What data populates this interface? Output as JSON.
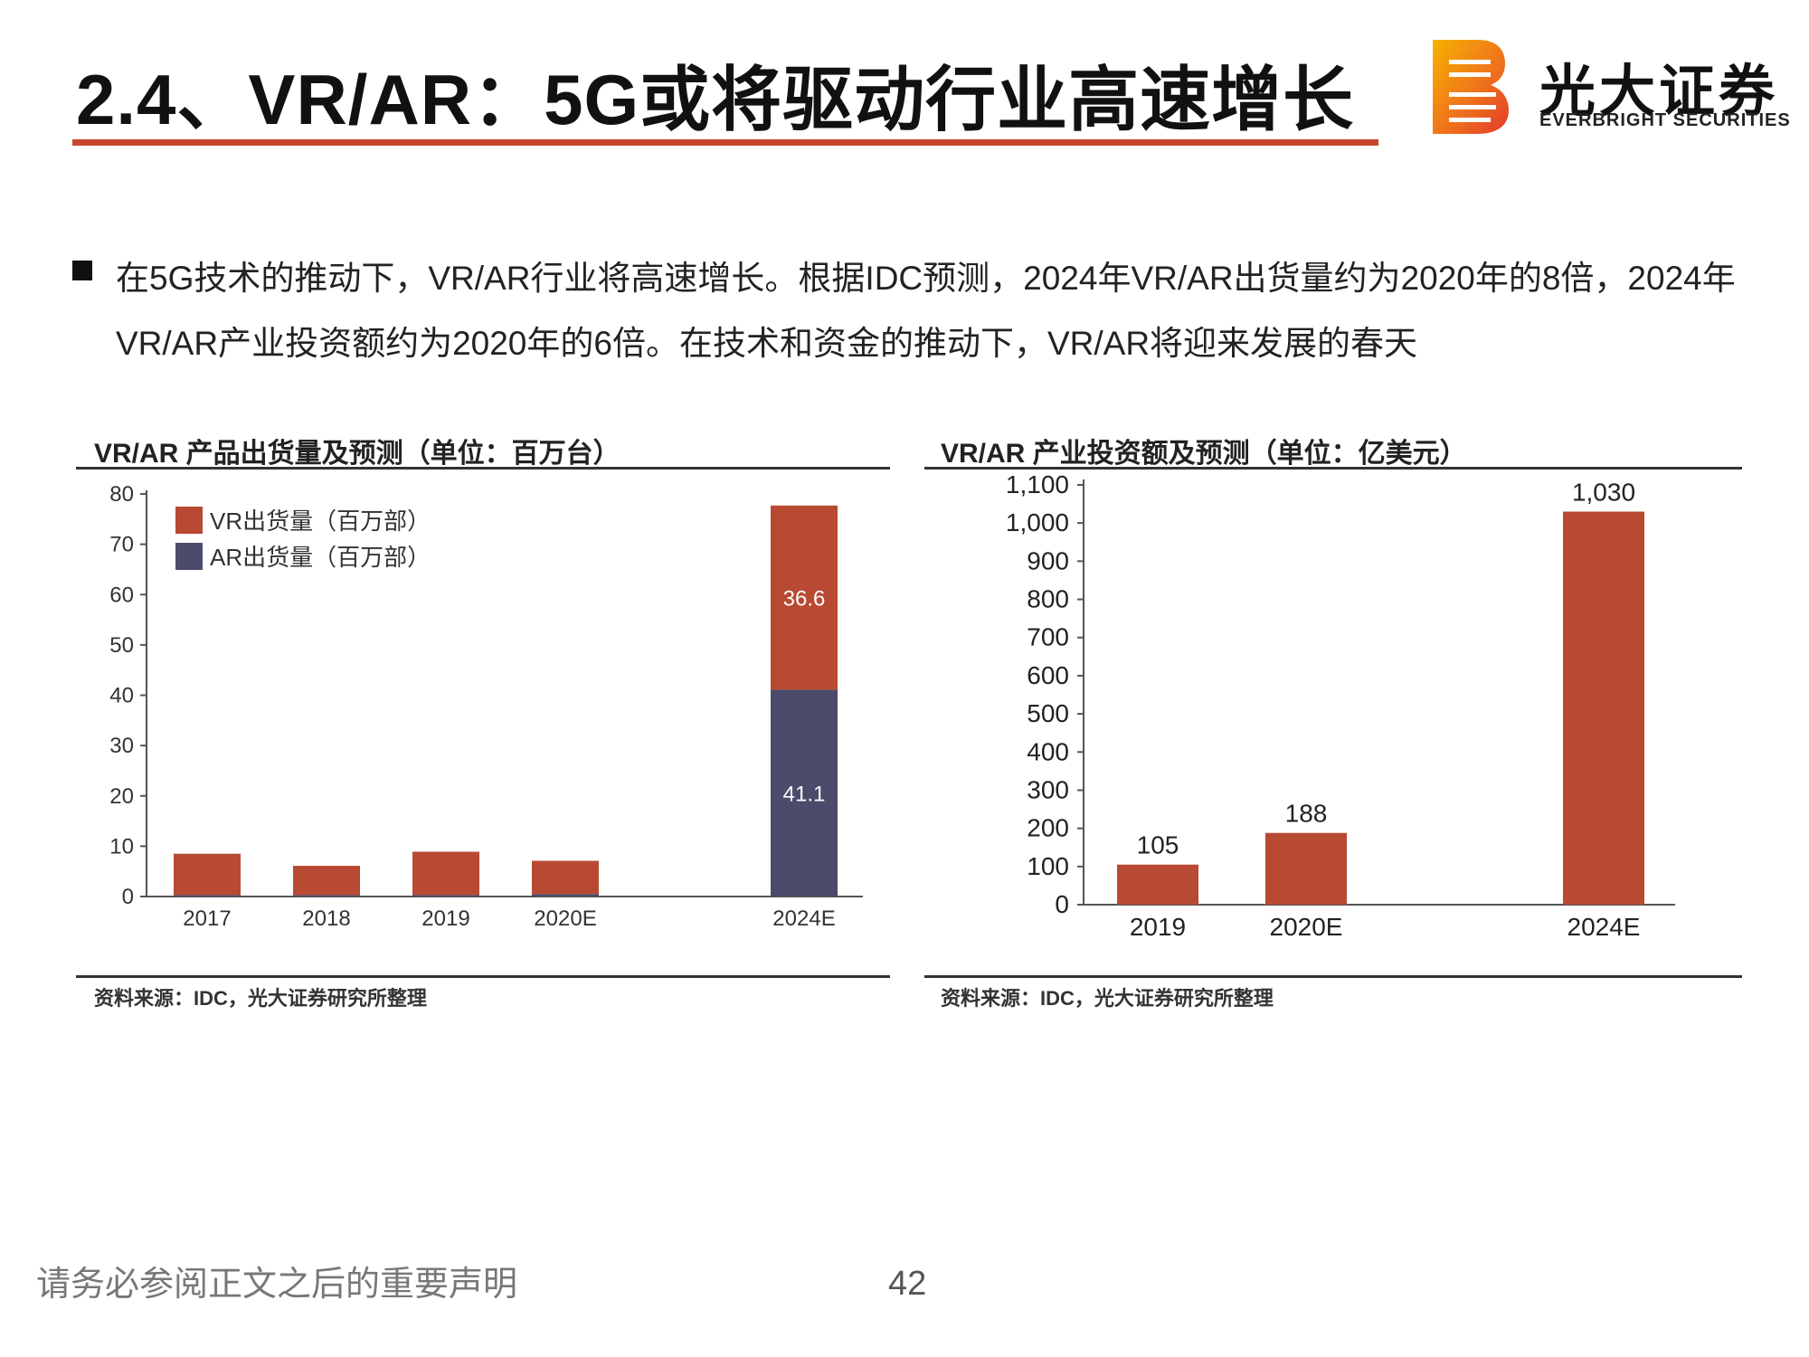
{
  "page": {
    "title": "2.4、VR/AR：5G或将驱动行业高速增长",
    "bullet": "在5G技术的推动下，VR/AR行业将高速增长。根据IDC预测，2024年VR/AR出货量约为2020年的8倍，2024年VR/AR产业投资额约为2020年的6倍。在技术和资金的推动下，VR/AR将迎来发展的春天",
    "footer_note": "请务必参阅正文之后的重要声明",
    "page_number": "42"
  },
  "logo": {
    "cn": "光大证券",
    "en": "EVERBRIGHT SECURITIES",
    "colors": [
      "#f6b100",
      "#f07a1a",
      "#e23a2a"
    ]
  },
  "colors": {
    "accent_rule": "#c8462c",
    "vr_bar": "#b84a34",
    "ar_bar": "#4d4b6b",
    "invest_bar": "#b84a34"
  },
  "panels": {
    "left": {
      "title": "VR/AR 产品出货量及预测（单位：百万台）",
      "source": "资料来源：IDC，光大证券研究所整理"
    },
    "right": {
      "title": "VR/AR 产业投资额及预测（单位：亿美元）",
      "source": "资料来源：IDC，光大证券研究所整理"
    }
  },
  "chart_data": [
    {
      "type": "bar",
      "stacked": true,
      "title": "VR/AR 产品出货量及预测（单位：百万台）",
      "categories": [
        "2017",
        "2018",
        "2019",
        "2020E",
        "2024E"
      ],
      "series": [
        {
          "name": "AR出货量（百万部）",
          "values": [
            0.3,
            0.3,
            0.3,
            0.5,
            41.1
          ],
          "color": "#4d4b6b"
        },
        {
          "name": "VR出货量（百万部）",
          "values": [
            8.2,
            5.8,
            8.6,
            6.6,
            36.6
          ],
          "color": "#b84a34"
        }
      ],
      "data_labels": {
        "2024E": [
          "41.1",
          "36.6"
        ]
      },
      "ylim": [
        0,
        80
      ],
      "yticks": [
        "0",
        "10",
        "20",
        "30",
        "40",
        "50",
        "60",
        "70",
        "80"
      ],
      "legend_position": "top-left",
      "grid": false
    },
    {
      "type": "bar",
      "title": "VR/AR 产业投资额及预测（单位：亿美元）",
      "categories": [
        "2019",
        "2020E",
        "2024E"
      ],
      "values": [
        105,
        188,
        1030
      ],
      "value_labels": [
        "105",
        "188",
        "1,030"
      ],
      "ylim": [
        0,
        1100
      ],
      "yticks": [
        "0",
        "100",
        "200",
        "300",
        "400",
        "500",
        "600",
        "700",
        "800",
        "900",
        "1,000",
        "1,100"
      ],
      "grid": false
    }
  ]
}
